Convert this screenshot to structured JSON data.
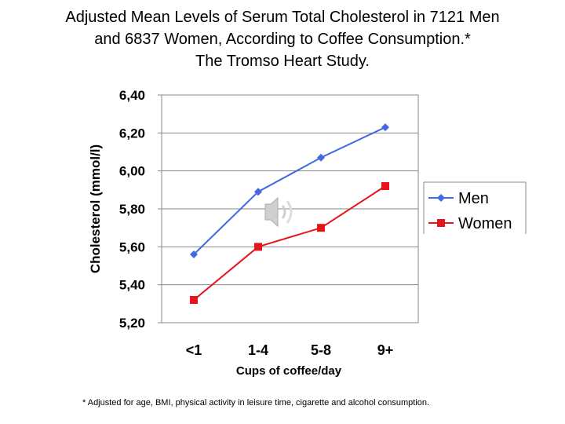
{
  "title_lines": [
    "Adjusted Mean Levels of Serum Total Cholesterol in 7121 Men",
    "and 6837 Women, According to Coffee Consumption.*",
    "The Tromso Heart Study."
  ],
  "footnote": "* Adjusted for age, BMI, physical activity in leisure time, cigarette and alcohol consumption.",
  "chart_data": {
    "type": "line",
    "title": "Adjusted Mean Levels of Serum Total Cholesterol in 7121 Men and 6837 Women, According to Coffee Consumption.* The Tromso Heart Study.",
    "xlabel": "Cups of coffee/day",
    "ylabel": "Cholesterol (mmol/l)",
    "categories": [
      "<1",
      "1-4",
      "5-8",
      "9+"
    ],
    "ylim": [
      5.2,
      6.4
    ],
    "yticks": [
      5.2,
      5.4,
      5.6,
      5.8,
      6.0,
      6.2,
      6.4
    ],
    "ytick_labels": [
      "5,20",
      "5,40",
      "5,60",
      "5,80",
      "6,00",
      "6,20",
      "6,40"
    ],
    "grid": true,
    "legend_position": "right",
    "series": [
      {
        "name": "Men",
        "color": "#4169E1",
        "marker": "diamond",
        "values": [
          5.56,
          5.89,
          6.07,
          6.23
        ]
      },
      {
        "name": "Women",
        "color": "#E8141B",
        "marker": "square",
        "values": [
          5.32,
          5.6,
          5.7,
          5.92
        ]
      }
    ]
  }
}
